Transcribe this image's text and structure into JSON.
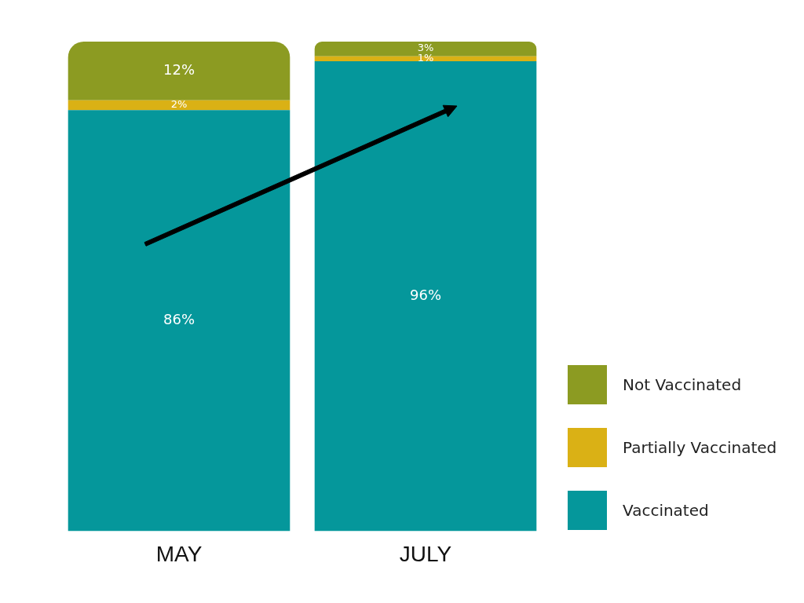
{
  "chart_data": {
    "type": "bar",
    "stacked": true,
    "categories": [
      "MAY",
      "JULY"
    ],
    "series": [
      {
        "name": "Vaccinated",
        "color": "#05979b",
        "values": [
          86,
          96
        ],
        "value_labels": [
          "86%",
          "96%"
        ]
      },
      {
        "name": "Partially Vaccinated",
        "color": "#dab115",
        "values": [
          2,
          1
        ],
        "value_labels": [
          "2%",
          "1%"
        ]
      },
      {
        "name": "Not Vaccinated",
        "color": "#8c9b22",
        "values": [
          12,
          3
        ],
        "value_labels": [
          "12%",
          "3%"
        ]
      }
    ],
    "legend": "right",
    "grid": false,
    "tick_labels": "x"
  }
}
